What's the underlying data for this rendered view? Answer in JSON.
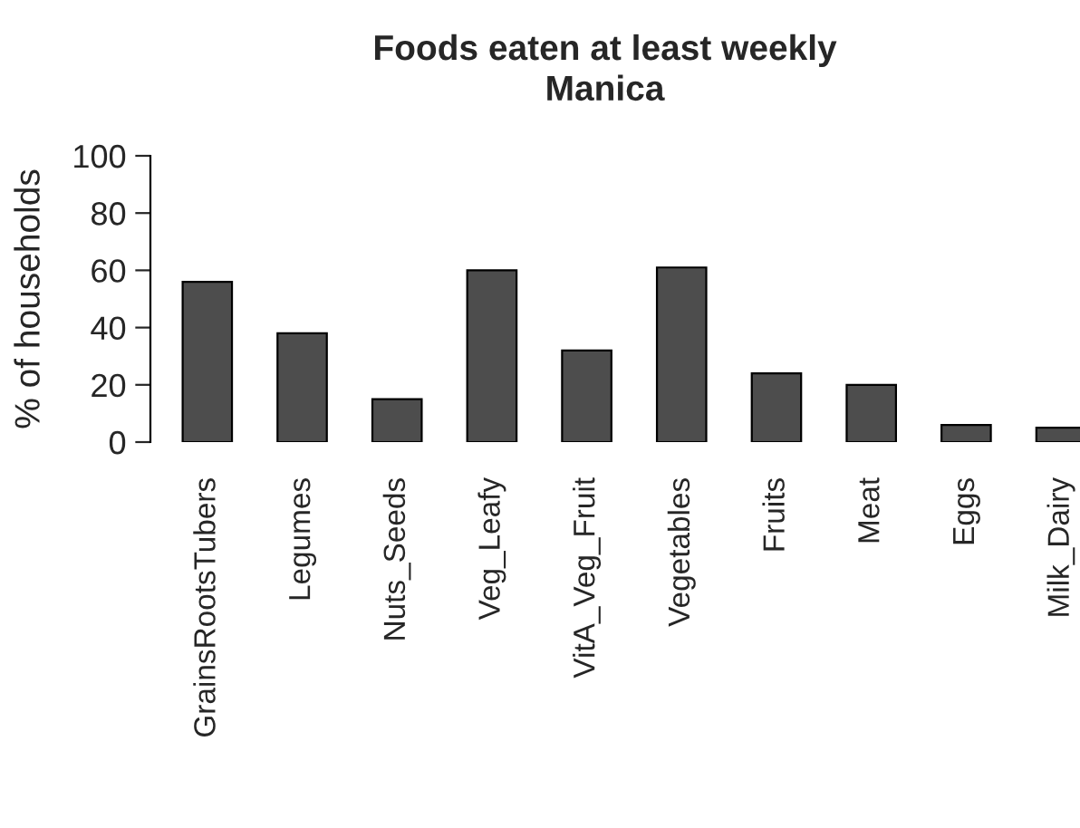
{
  "chart_data": {
    "type": "bar",
    "title": "Foods eaten at least weekly\nManica",
    "ylabel": "% of households",
    "categories": [
      "GrainsRootsTubers",
      "Legumes",
      "Nuts_Seeds",
      "Veg_Leafy",
      "VitA_Veg_Fruit",
      "Vegetables",
      "Fruits",
      "Meat",
      "Eggs",
      "Milk_Dairy"
    ],
    "values": [
      56,
      38,
      15,
      60,
      32,
      61,
      24,
      20,
      6,
      5
    ],
    "color": "#4d4d4d",
    "ylim": [
      0,
      100
    ],
    "yticks": [
      0,
      20,
      40,
      60,
      80,
      100
    ],
    "grid": false,
    "legend": false
  }
}
